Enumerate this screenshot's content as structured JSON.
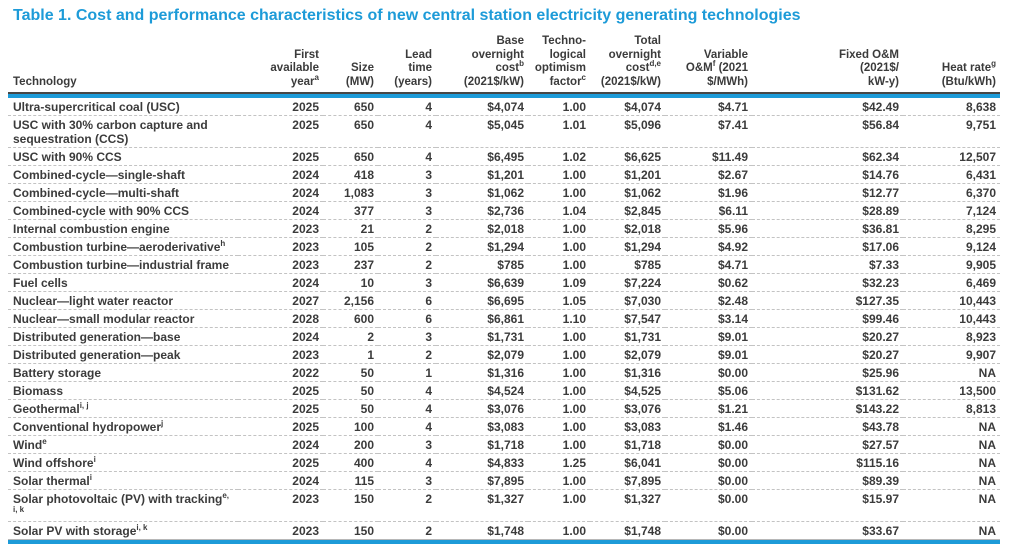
{
  "title": "Table 1. Cost and performance characteristics of new central station electricity generating technologies",
  "accent_color": "#1d9bd8",
  "table": {
    "columns": [
      {
        "id": "technology",
        "align": "left",
        "label_lines": [
          "Technology"
        ]
      },
      {
        "id": "first-available-year",
        "align": "right",
        "label_lines": [
          "First",
          "available",
          "year^{a}"
        ]
      },
      {
        "id": "size",
        "align": "right",
        "label_lines": [
          "Size",
          "(MW)"
        ]
      },
      {
        "id": "lead-time",
        "align": "right",
        "label_lines": [
          "Lead",
          "time",
          "(years)"
        ]
      },
      {
        "id": "base-overnight-cost",
        "align": "right",
        "label_lines": [
          "Base",
          "overnight",
          "cost^{b}",
          "(2021$/kW)"
        ]
      },
      {
        "id": "technological-optimism-factor",
        "align": "right",
        "label_lines": [
          "Techno-",
          "logical",
          "optimism",
          "factor^{c}"
        ]
      },
      {
        "id": "total-overnight-cost",
        "align": "right",
        "label_lines": [
          "Total",
          "overnight",
          "cost^{d,e}",
          "(2021$/kW)"
        ]
      },
      {
        "id": "variable-om",
        "align": "right",
        "label_lines": [
          "Variable",
          "O&M^{f} (2021",
          "$/MWh)"
        ]
      },
      {
        "id": "fixed-om",
        "align": "right",
        "label_lines": [
          "Fixed O&M",
          "(2021$/",
          "kW-y)"
        ]
      },
      {
        "id": "heat-rate",
        "align": "right",
        "label_lines": [
          "Heat rate^{g}",
          "(Btu/kWh)"
        ]
      }
    ],
    "rows": [
      [
        "Ultra-supercritical coal (USC)",
        "2025",
        "650",
        "4",
        "$4,074",
        "1.00",
        "$4,074",
        "$4.71",
        "$42.49",
        "8,638"
      ],
      [
        "USC with 30% carbon capture and sequestration (CCS)",
        "2025",
        "650",
        "4",
        "$5,045",
        "1.01",
        "$5,096",
        "$7.41",
        "$56.84",
        "9,751"
      ],
      [
        "USC with 90% CCS",
        "2025",
        "650",
        "4",
        "$6,495",
        "1.02",
        "$6,625",
        "$11.49",
        "$62.34",
        "12,507"
      ],
      [
        "Combined-cycle—single-shaft",
        "2024",
        "418",
        "3",
        "$1,201",
        "1.00",
        "$1,201",
        "$2.67",
        "$14.76",
        "6,431"
      ],
      [
        "Combined-cycle—multi-shaft",
        "2024",
        "1,083",
        "3",
        "$1,062",
        "1.00",
        "$1,062",
        "$1.96",
        "$12.77",
        "6,370"
      ],
      [
        "Combined-cycle with 90% CCS",
        "2024",
        "377",
        "3",
        "$2,736",
        "1.04",
        "$2,845",
        "$6.11",
        "$28.89",
        "7,124"
      ],
      [
        "Internal combustion engine",
        "2023",
        "21",
        "2",
        "$2,018",
        "1.00",
        "$2,018",
        "$5.96",
        "$36.81",
        "8,295"
      ],
      [
        "Combustion turbine—aeroderivative^{h}",
        "2023",
        "105",
        "2",
        "$1,294",
        "1.00",
        "$1,294",
        "$4.92",
        "$17.06",
        "9,124"
      ],
      [
        "Combustion turbine—industrial frame",
        "2023",
        "237",
        "2",
        "$785",
        "1.00",
        "$785",
        "$4.71",
        "$7.33",
        "9,905"
      ],
      [
        "Fuel cells",
        "2024",
        "10",
        "3",
        "$6,639",
        "1.09",
        "$7,224",
        "$0.62",
        "$32.23",
        "6,469"
      ],
      [
        "Nuclear—light water reactor",
        "2027",
        "2,156",
        "6",
        "$6,695",
        "1.05",
        "$7,030",
        "$2.48",
        "$127.35",
        "10,443"
      ],
      [
        "Nuclear—small modular reactor",
        "2028",
        "600",
        "6",
        "$6,861",
        "1.10",
        "$7,547",
        "$3.14",
        "$99.46",
        "10,443"
      ],
      [
        "Distributed generation—base",
        "2024",
        "2",
        "3",
        "$1,731",
        "1.00",
        "$1,731",
        "$9.01",
        "$20.27",
        "8,923"
      ],
      [
        "Distributed generation—peak",
        "2023",
        "1",
        "2",
        "$2,079",
        "1.00",
        "$2,079",
        "$9.01",
        "$20.27",
        "9,907"
      ],
      [
        "Battery storage",
        "2022",
        "50",
        "1",
        "$1,316",
        "1.00",
        "$1,316",
        "$0.00",
        "$25.96",
        "NA"
      ],
      [
        "Biomass",
        "2025",
        "50",
        "4",
        "$4,524",
        "1.00",
        "$4,525",
        "$5.06",
        "$131.62",
        "13,500"
      ],
      [
        "Geothermal^{i, j}",
        "2025",
        "50",
        "4",
        "$3,076",
        "1.00",
        "$3,076",
        "$1.21",
        "$143.22",
        "8,813"
      ],
      [
        "Conventional hydropower^{j}",
        "2025",
        "100",
        "4",
        "$3,083",
        "1.00",
        "$3,083",
        "$1.46",
        "$43.78",
        "NA"
      ],
      [
        "Wind^{e}",
        "2024",
        "200",
        "3",
        "$1,718",
        "1.00",
        "$1,718",
        "$0.00",
        "$27.57",
        "NA"
      ],
      [
        "Wind offshore^{i}",
        "2025",
        "400",
        "4",
        "$4,833",
        "1.25",
        "$6,041",
        "$0.00",
        "$115.16",
        "NA"
      ],
      [
        "Solar thermal^{i}",
        "2024",
        "115",
        "3",
        "$7,895",
        "1.00",
        "$7,895",
        "$0.00",
        "$89.39",
        "NA"
      ],
      [
        "Solar photovoltaic (PV) with tracking^{e, i, k}",
        "2023",
        "150",
        "2",
        "$1,327",
        "1.00",
        "$1,327",
        "$0.00",
        "$15.97",
        "NA"
      ],
      [
        "Solar PV with storage^{i, k}",
        "2023",
        "150",
        "2",
        "$1,748",
        "1.00",
        "$1,748",
        "$0.00",
        "$33.67",
        "NA"
      ]
    ]
  }
}
